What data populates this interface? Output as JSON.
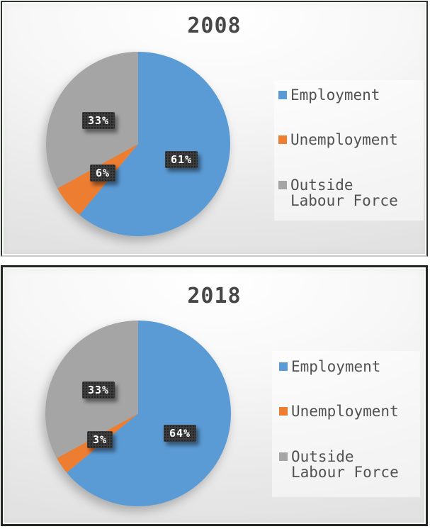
{
  "style": {
    "page_background": "#ffffff",
    "frame_border_color": "#2b302b",
    "title_color": "#474747",
    "legend_text_color": "#525252",
    "data_label_background": "#3c3c3c",
    "data_label_text_color": "#ffffff",
    "series_colors": {
      "employment": "#5B9BD5",
      "unemployment": "#ED7D31",
      "outside_labour_force": "#A5A5A5"
    }
  },
  "chart_data": [
    {
      "type": "pie",
      "title": "2008",
      "categories": [
        "Employment",
        "Unemployment",
        "Outside Labour Force"
      ],
      "values": [
        61,
        6,
        33
      ],
      "value_labels": [
        "61%",
        "6%",
        "33%"
      ],
      "colors": [
        "#5B9BD5",
        "#ED7D31",
        "#A5A5A5"
      ],
      "start_angle_deg": 0,
      "direction": "clockwise",
      "legend_position": "right",
      "data_label_style": "dark box, white text, inside slices"
    },
    {
      "type": "pie",
      "title": "2018",
      "categories": [
        "Employment",
        "Unemployment",
        "Outside Labour Force"
      ],
      "values": [
        64,
        3,
        33
      ],
      "value_labels": [
        "64%",
        "3%",
        "33%"
      ],
      "colors": [
        "#5B9BD5",
        "#ED7D31",
        "#A5A5A5"
      ],
      "start_angle_deg": 0,
      "direction": "clockwise",
      "legend_position": "right",
      "data_label_style": "dark box, white text, inside slices"
    }
  ]
}
